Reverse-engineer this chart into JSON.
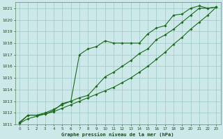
{
  "xlabel": "Graphe pression niveau de la mer (hPa)",
  "ylim": [
    1011,
    1021.5
  ],
  "xlim": [
    -0.5,
    23.5
  ],
  "yticks": [
    1011,
    1012,
    1013,
    1014,
    1015,
    1016,
    1017,
    1018,
    1019,
    1020,
    1021
  ],
  "xticks": [
    0,
    1,
    2,
    3,
    4,
    5,
    6,
    7,
    8,
    9,
    10,
    11,
    12,
    13,
    14,
    15,
    16,
    17,
    18,
    19,
    20,
    21,
    22,
    23
  ],
  "bg_color": "#cce8e8",
  "grid_color": "#9ec8c8",
  "line_color": "#1a6b1a",
  "line1_x": [
    0,
    1,
    2,
    3,
    4,
    5,
    6,
    7,
    8,
    9,
    10,
    11,
    12,
    13,
    14,
    15,
    16,
    17,
    18,
    19,
    20,
    21,
    22,
    23
  ],
  "line1_y": [
    1011.2,
    1011.8,
    1011.8,
    1011.9,
    1012.2,
    1012.8,
    1013.0,
    1017.0,
    1017.5,
    1017.7,
    1018.2,
    1018.0,
    1018.0,
    1018.0,
    1018.0,
    1018.8,
    1019.3,
    1019.5,
    1020.4,
    1020.5,
    1021.0,
    1021.2,
    1021.0,
    1021.1
  ],
  "line2_x": [
    0,
    1,
    2,
    3,
    4,
    5,
    6,
    7,
    8,
    9,
    10,
    11,
    12,
    13,
    14,
    15,
    16,
    17,
    18,
    19,
    20,
    21,
    22,
    23
  ],
  "line2_y": [
    1011.1,
    1011.5,
    1011.7,
    1011.9,
    1012.1,
    1012.4,
    1012.7,
    1013.0,
    1013.3,
    1013.6,
    1013.9,
    1014.2,
    1014.6,
    1015.0,
    1015.5,
    1016.0,
    1016.6,
    1017.2,
    1017.9,
    1018.5,
    1019.2,
    1019.8,
    1020.4,
    1021.1
  ],
  "line3_x": [
    0,
    1,
    2,
    3,
    4,
    5,
    6,
    7,
    8,
    9,
    10,
    11,
    12,
    13,
    14,
    15,
    16,
    17,
    18,
    19,
    20,
    21,
    22,
    23
  ],
  "line3_y": [
    1011.1,
    1011.8,
    1011.8,
    1012.0,
    1012.3,
    1012.7,
    1013.0,
    1013.3,
    1013.5,
    1014.3,
    1015.1,
    1015.5,
    1016.0,
    1016.5,
    1017.1,
    1017.5,
    1018.3,
    1018.7,
    1019.2,
    1019.8,
    1020.4,
    1021.0,
    1021.0,
    1021.1
  ]
}
